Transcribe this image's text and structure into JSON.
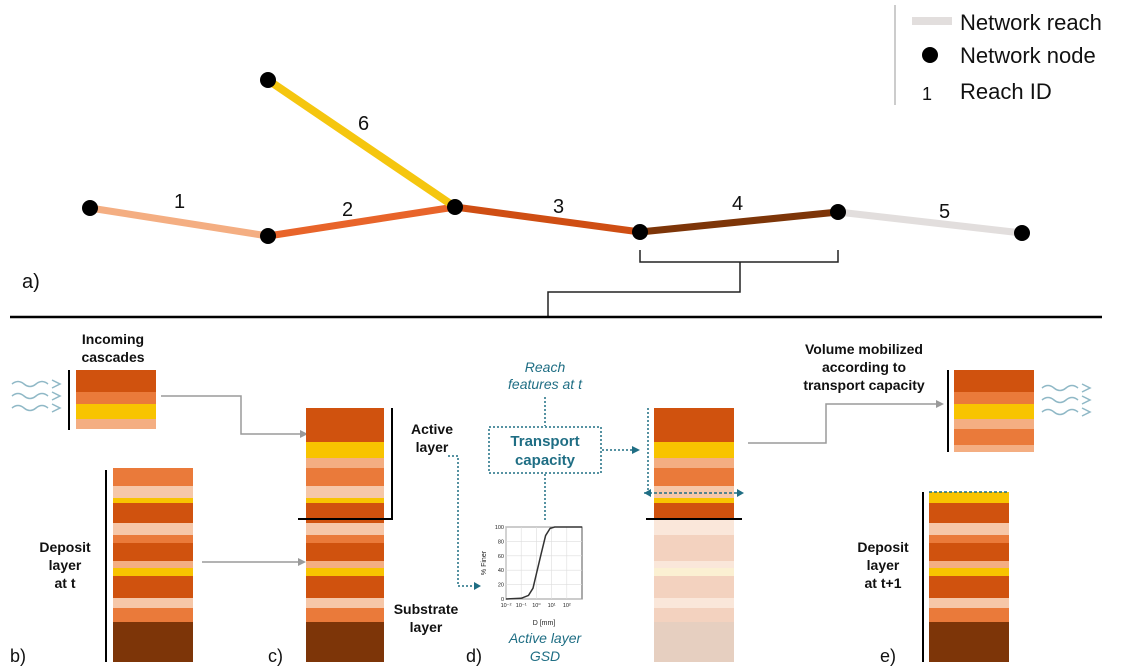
{
  "legend": {
    "reach_label": "Network reach",
    "node_label": "Network node",
    "id_sample": "1",
    "id_label": "Reach ID"
  },
  "network": {
    "panel_label": "a)",
    "reach_ids": [
      "1",
      "2",
      "3",
      "4",
      "5",
      "6"
    ],
    "reach_colors": [
      "#f4ae82",
      "#e8642a",
      "#cf4e13",
      "#7d3508",
      "#e2dedd",
      "#f5c60f"
    ]
  },
  "colors": {
    "dark_orange": "#d0520e",
    "orange": "#e8642a",
    "mid_orange": "#ea7a3a",
    "light_orange": "#f4ae82",
    "pale_orange": "#f6c7a8",
    "yellow": "#f8c400",
    "brown": "#7d3508",
    "faded_dark": "#f3d2bf",
    "faded_pale": "#fae7da",
    "faded_yellow": "#fbf0d2",
    "faded_brown": "#e6cfc0",
    "teal": "#1f6e84"
  },
  "panels": {
    "b": {
      "label": "b)",
      "incoming_line1": "Incoming",
      "incoming_line2": "cascades",
      "deposit_line1": "Deposit",
      "deposit_line2": "layer",
      "deposit_line3": "at t"
    },
    "c": {
      "label": "c)",
      "active_line1": "Active",
      "active_line2": "layer",
      "substrate_line1": "Substrate",
      "substrate_line2": "layer"
    },
    "d": {
      "label": "d)",
      "reach_line1": "Reach",
      "reach_line2": "features at t",
      "transport_line1": "Transport",
      "transport_line2": "capacity",
      "gsd_line1": "Active layer",
      "gsd_line2": "GSD",
      "gsd_chart": {
        "type": "line",
        "ylabel": "% Finer",
        "xlabel": "D [mm]",
        "xscale": "log",
        "xlim": [
          0.01,
          1000
        ],
        "ylim": [
          0,
          100
        ],
        "xticks": [
          "10⁻²",
          "10⁻¹",
          "10⁰",
          "10¹",
          "10²"
        ],
        "yticks": [
          "0",
          "20",
          "40",
          "60",
          "80",
          "100"
        ],
        "x": [
          0.01,
          0.1,
          0.3,
          0.6,
          1,
          2,
          4,
          8,
          16,
          50,
          1000
        ],
        "y": [
          0,
          1,
          5,
          15,
          35,
          62,
          88,
          98,
          100,
          100,
          100
        ]
      }
    },
    "e": {
      "label": "e)",
      "mobilized_line1": "Volume mobilized",
      "mobilized_line2": "according to",
      "mobilized_line3": "transport capacity",
      "deposit_line1": "Deposit",
      "deposit_line2": "layer",
      "deposit_line3": "at t+1"
    }
  }
}
